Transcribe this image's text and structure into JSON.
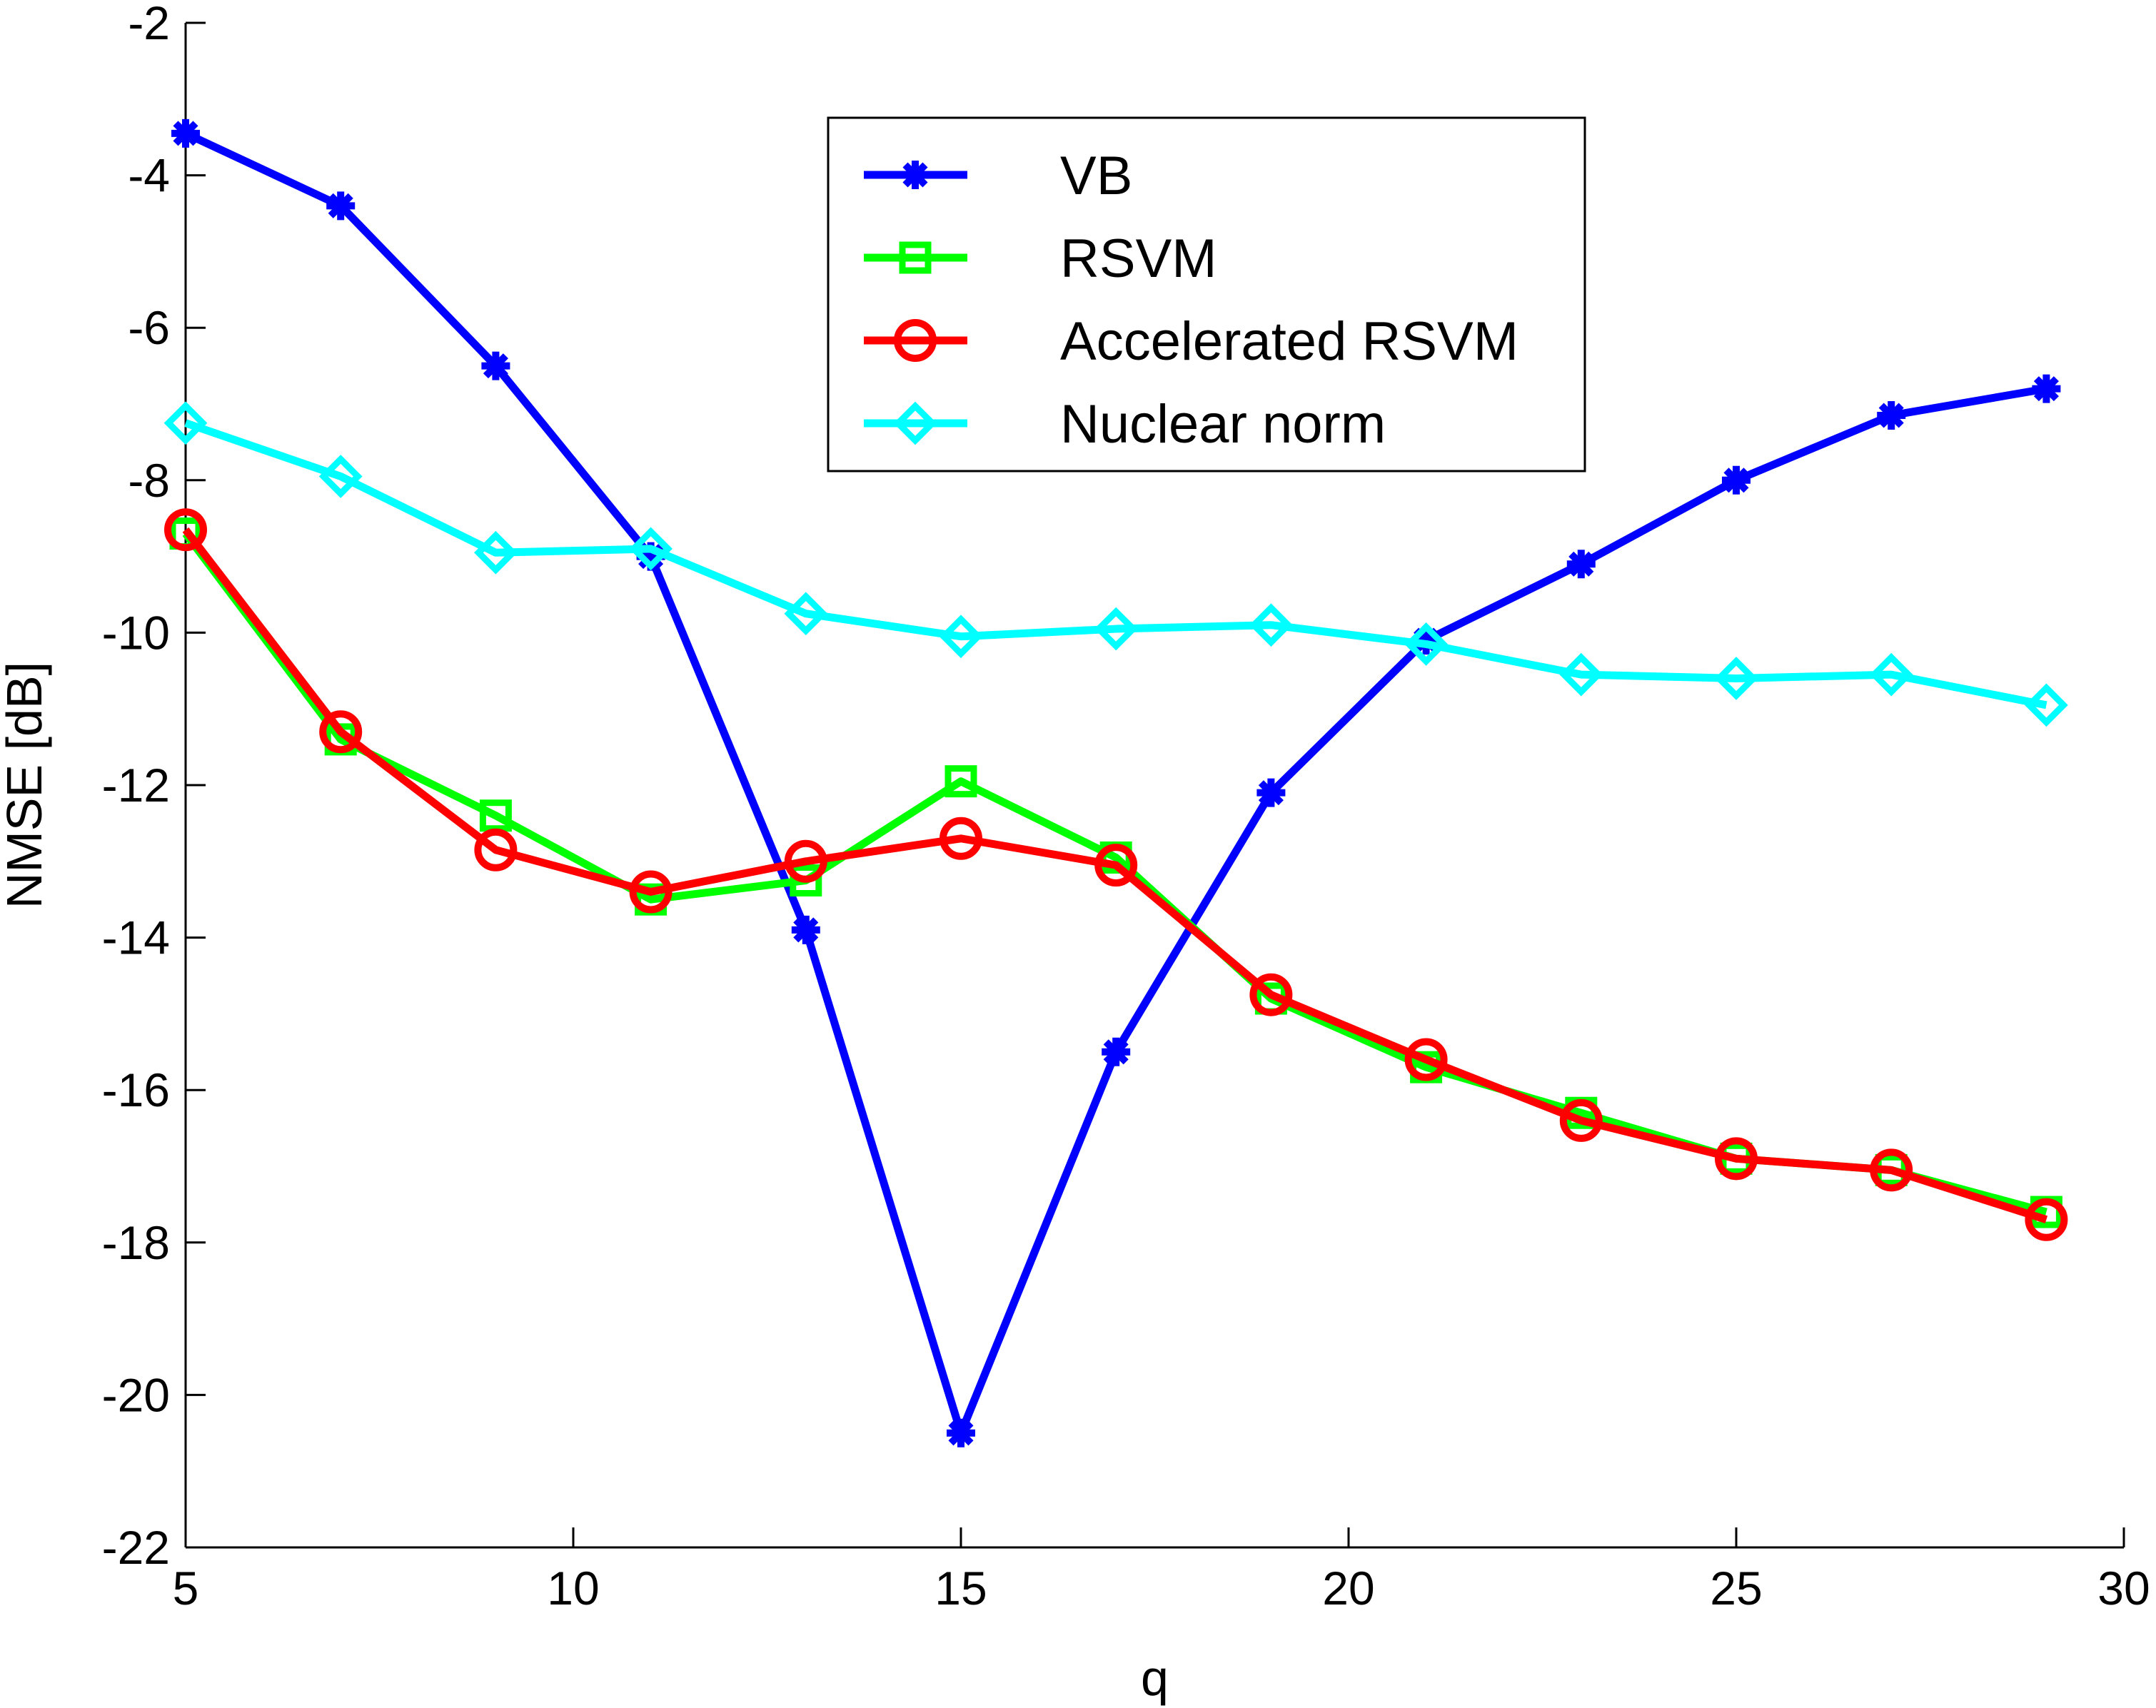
{
  "chart_data": {
    "type": "line",
    "title": "",
    "xlabel": "q",
    "ylabel": "NMSE [dB]",
    "xlim": [
      5,
      30
    ],
    "ylim": [
      -22,
      -2
    ],
    "xticks": [
      "5",
      "10",
      "15",
      "20",
      "25",
      "30"
    ],
    "yticks": [
      "-2",
      "-4",
      "-6",
      "-8",
      "-10",
      "-12",
      "-14",
      "-16",
      "-18",
      "-20",
      "-22"
    ],
    "grid": false,
    "legend_position": "top-center",
    "x": [
      5,
      7,
      9,
      11,
      13,
      15,
      17,
      19,
      21,
      23,
      25,
      27,
      29
    ],
    "series": [
      {
        "name": "VB",
        "color": "#0000ff",
        "marker": "asterisk",
        "values": [
          -3.45,
          -4.4,
          -6.5,
          -9.0,
          -13.9,
          -20.5,
          -15.5,
          -12.1,
          -10.1,
          -9.1,
          -8.0,
          -7.15,
          -6.8
        ]
      },
      {
        "name": "RSVM",
        "color": "#00ff00",
        "marker": "square",
        "values": [
          -8.7,
          -11.4,
          -12.4,
          -13.5,
          -13.25,
          -11.95,
          -12.95,
          -14.8,
          -15.7,
          -16.3,
          -16.9,
          -17.05,
          -17.6
        ]
      },
      {
        "name": "Accelerated RSVM",
        "color": "#ff0000",
        "marker": "circle",
        "values": [
          -8.65,
          -11.3,
          -12.85,
          -13.4,
          -13.0,
          -12.7,
          -13.05,
          -14.75,
          -15.6,
          -16.4,
          -16.9,
          -17.05,
          -17.7
        ]
      },
      {
        "name": "Nuclear norm",
        "color": "#00ffff",
        "marker": "diamond",
        "values": [
          -7.25,
          -7.95,
          -8.95,
          -8.9,
          -9.75,
          -10.05,
          -9.95,
          -9.9,
          -10.15,
          -10.55,
          -10.6,
          -10.55,
          -10.95
        ]
      }
    ]
  }
}
